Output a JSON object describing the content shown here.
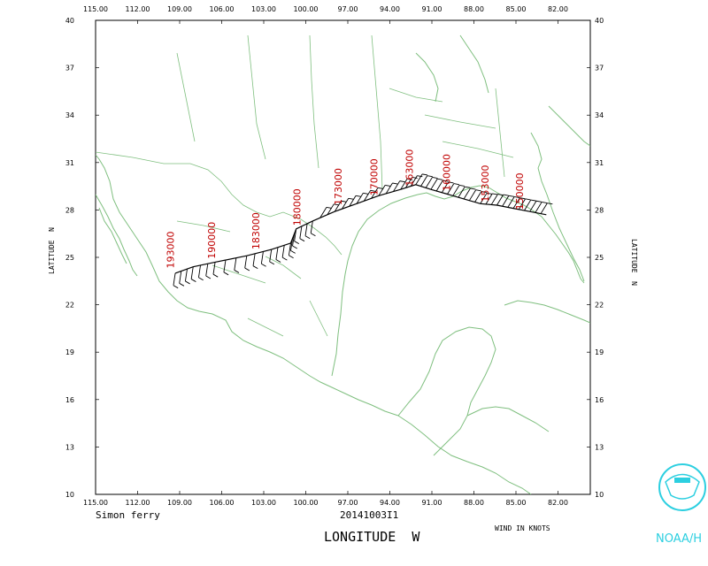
{
  "x_ticks": [
    "115.00",
    "112.00",
    "109.00",
    "106.00",
    "103.00",
    "100.00",
    "97.00",
    "94.00",
    "91.00",
    "88.00",
    "85.00",
    "82.00"
  ],
  "y_ticks": [
    "40",
    "37",
    "34",
    "31",
    "28",
    "25",
    "22",
    "19",
    "16",
    "13",
    "10"
  ],
  "x_axis_label": "LONGITUDE  W",
  "y_axis_label": "LATITUDE  N",
  "operator": "Simon ferry",
  "date": "20141003I1",
  "wind_units": "WIND IN KNOTS",
  "logo_text": "NOAA/H",
  "colors": {
    "coast": "#7fbf7f",
    "track": "#000000",
    "time_label": "#c00000",
    "logo": "#2ccfe0"
  },
  "map": {
    "lon_range": [
      -116,
      -80
    ],
    "lat_range": [
      10,
      40
    ]
  },
  "track": [
    [
      -110.2,
      24.0
    ],
    [
      -108.9,
      24.4
    ],
    [
      -107.3,
      24.7
    ],
    [
      -105.0,
      25.1
    ],
    [
      -103.2,
      25.5
    ],
    [
      -101.8,
      25.9
    ],
    [
      -101.4,
      26.8
    ],
    [
      -100.2,
      27.3
    ],
    [
      -98.6,
      27.9
    ],
    [
      -97.0,
      28.4
    ],
    [
      -95.4,
      28.9
    ],
    [
      -93.8,
      29.3
    ],
    [
      -92.7,
      29.6
    ],
    [
      -91.6,
      29.3
    ],
    [
      -90.4,
      29.0
    ],
    [
      -89.2,
      28.7
    ],
    [
      -88.0,
      28.4
    ],
    [
      -86.8,
      28.3
    ],
    [
      -85.6,
      28.1
    ],
    [
      -84.4,
      27.9
    ],
    [
      -83.2,
      27.7
    ]
  ],
  "time_labels": [
    {
      "text": "193000",
      "lon": -110.3,
      "lat": 24.3
    },
    {
      "text": "190000",
      "lon": -107.3,
      "lat": 24.9
    },
    {
      "text": "183000",
      "lon": -104.1,
      "lat": 25.5
    },
    {
      "text": "180000",
      "lon": -101.1,
      "lat": 27.0
    },
    {
      "text": "173000",
      "lon": -98.1,
      "lat": 28.3
    },
    {
      "text": "170000",
      "lon": -95.5,
      "lat": 28.9
    },
    {
      "text": "163000",
      "lon": -92.9,
      "lat": 29.5
    },
    {
      "text": "160000",
      "lon": -90.2,
      "lat": 29.2
    },
    {
      "text": "153000",
      "lon": -87.4,
      "lat": 28.5
    },
    {
      "text": "150000",
      "lon": -84.9,
      "lat": 28.0
    }
  ]
}
